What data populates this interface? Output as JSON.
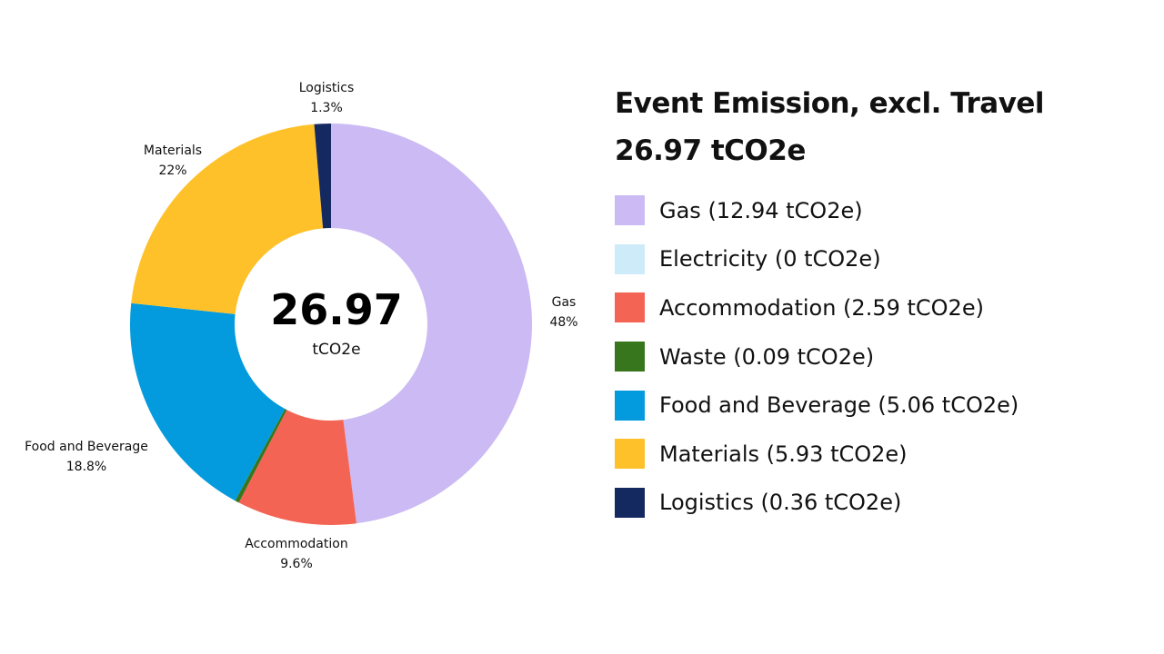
{
  "chart_data": {
    "type": "pie",
    "donut": true,
    "title": "Event Emission, excl. Travel",
    "total_label": "26.97 tCO2e",
    "center_value": "26.97",
    "center_unit": "tCO2e",
    "unit": "tCO2e",
    "legend_placement": "right",
    "slices": [
      {
        "name": "Gas",
        "value": 12.94,
        "percent_label": "48%",
        "legend": "Gas (12.94 tCO2e)",
        "color": "#CBBAF3",
        "show_label": true
      },
      {
        "name": "Electricity",
        "value": 0,
        "percent_label": "",
        "legend": "Electricity (0 tCO2e)",
        "color": "#CDEBF8",
        "show_label": false
      },
      {
        "name": "Accommodation",
        "value": 2.59,
        "percent_label": "9.6%",
        "legend": "Accommodation (2.59 tCO2e)",
        "color": "#F46454",
        "show_label": true
      },
      {
        "name": "Waste",
        "value": 0.09,
        "percent_label": "",
        "legend": "Waste (0.09 tCO2e)",
        "color": "#38761D",
        "show_label": false
      },
      {
        "name": "Food and Beverage",
        "value": 5.06,
        "percent_label": "18.8%",
        "legend": "Food and Beverage (5.06 tCO2e)",
        "color": "#039BDD",
        "show_label": true
      },
      {
        "name": "Materials",
        "value": 5.93,
        "percent_label": "22%",
        "legend": "Materials (5.93 tCO2e)",
        "color": "#FEC12A",
        "show_label": true
      },
      {
        "name": "Logistics",
        "value": 0.36,
        "percent_label": "1.3%",
        "legend": "Logistics (0.36 tCO2e)",
        "color": "#14295F",
        "show_label": true
      }
    ]
  }
}
